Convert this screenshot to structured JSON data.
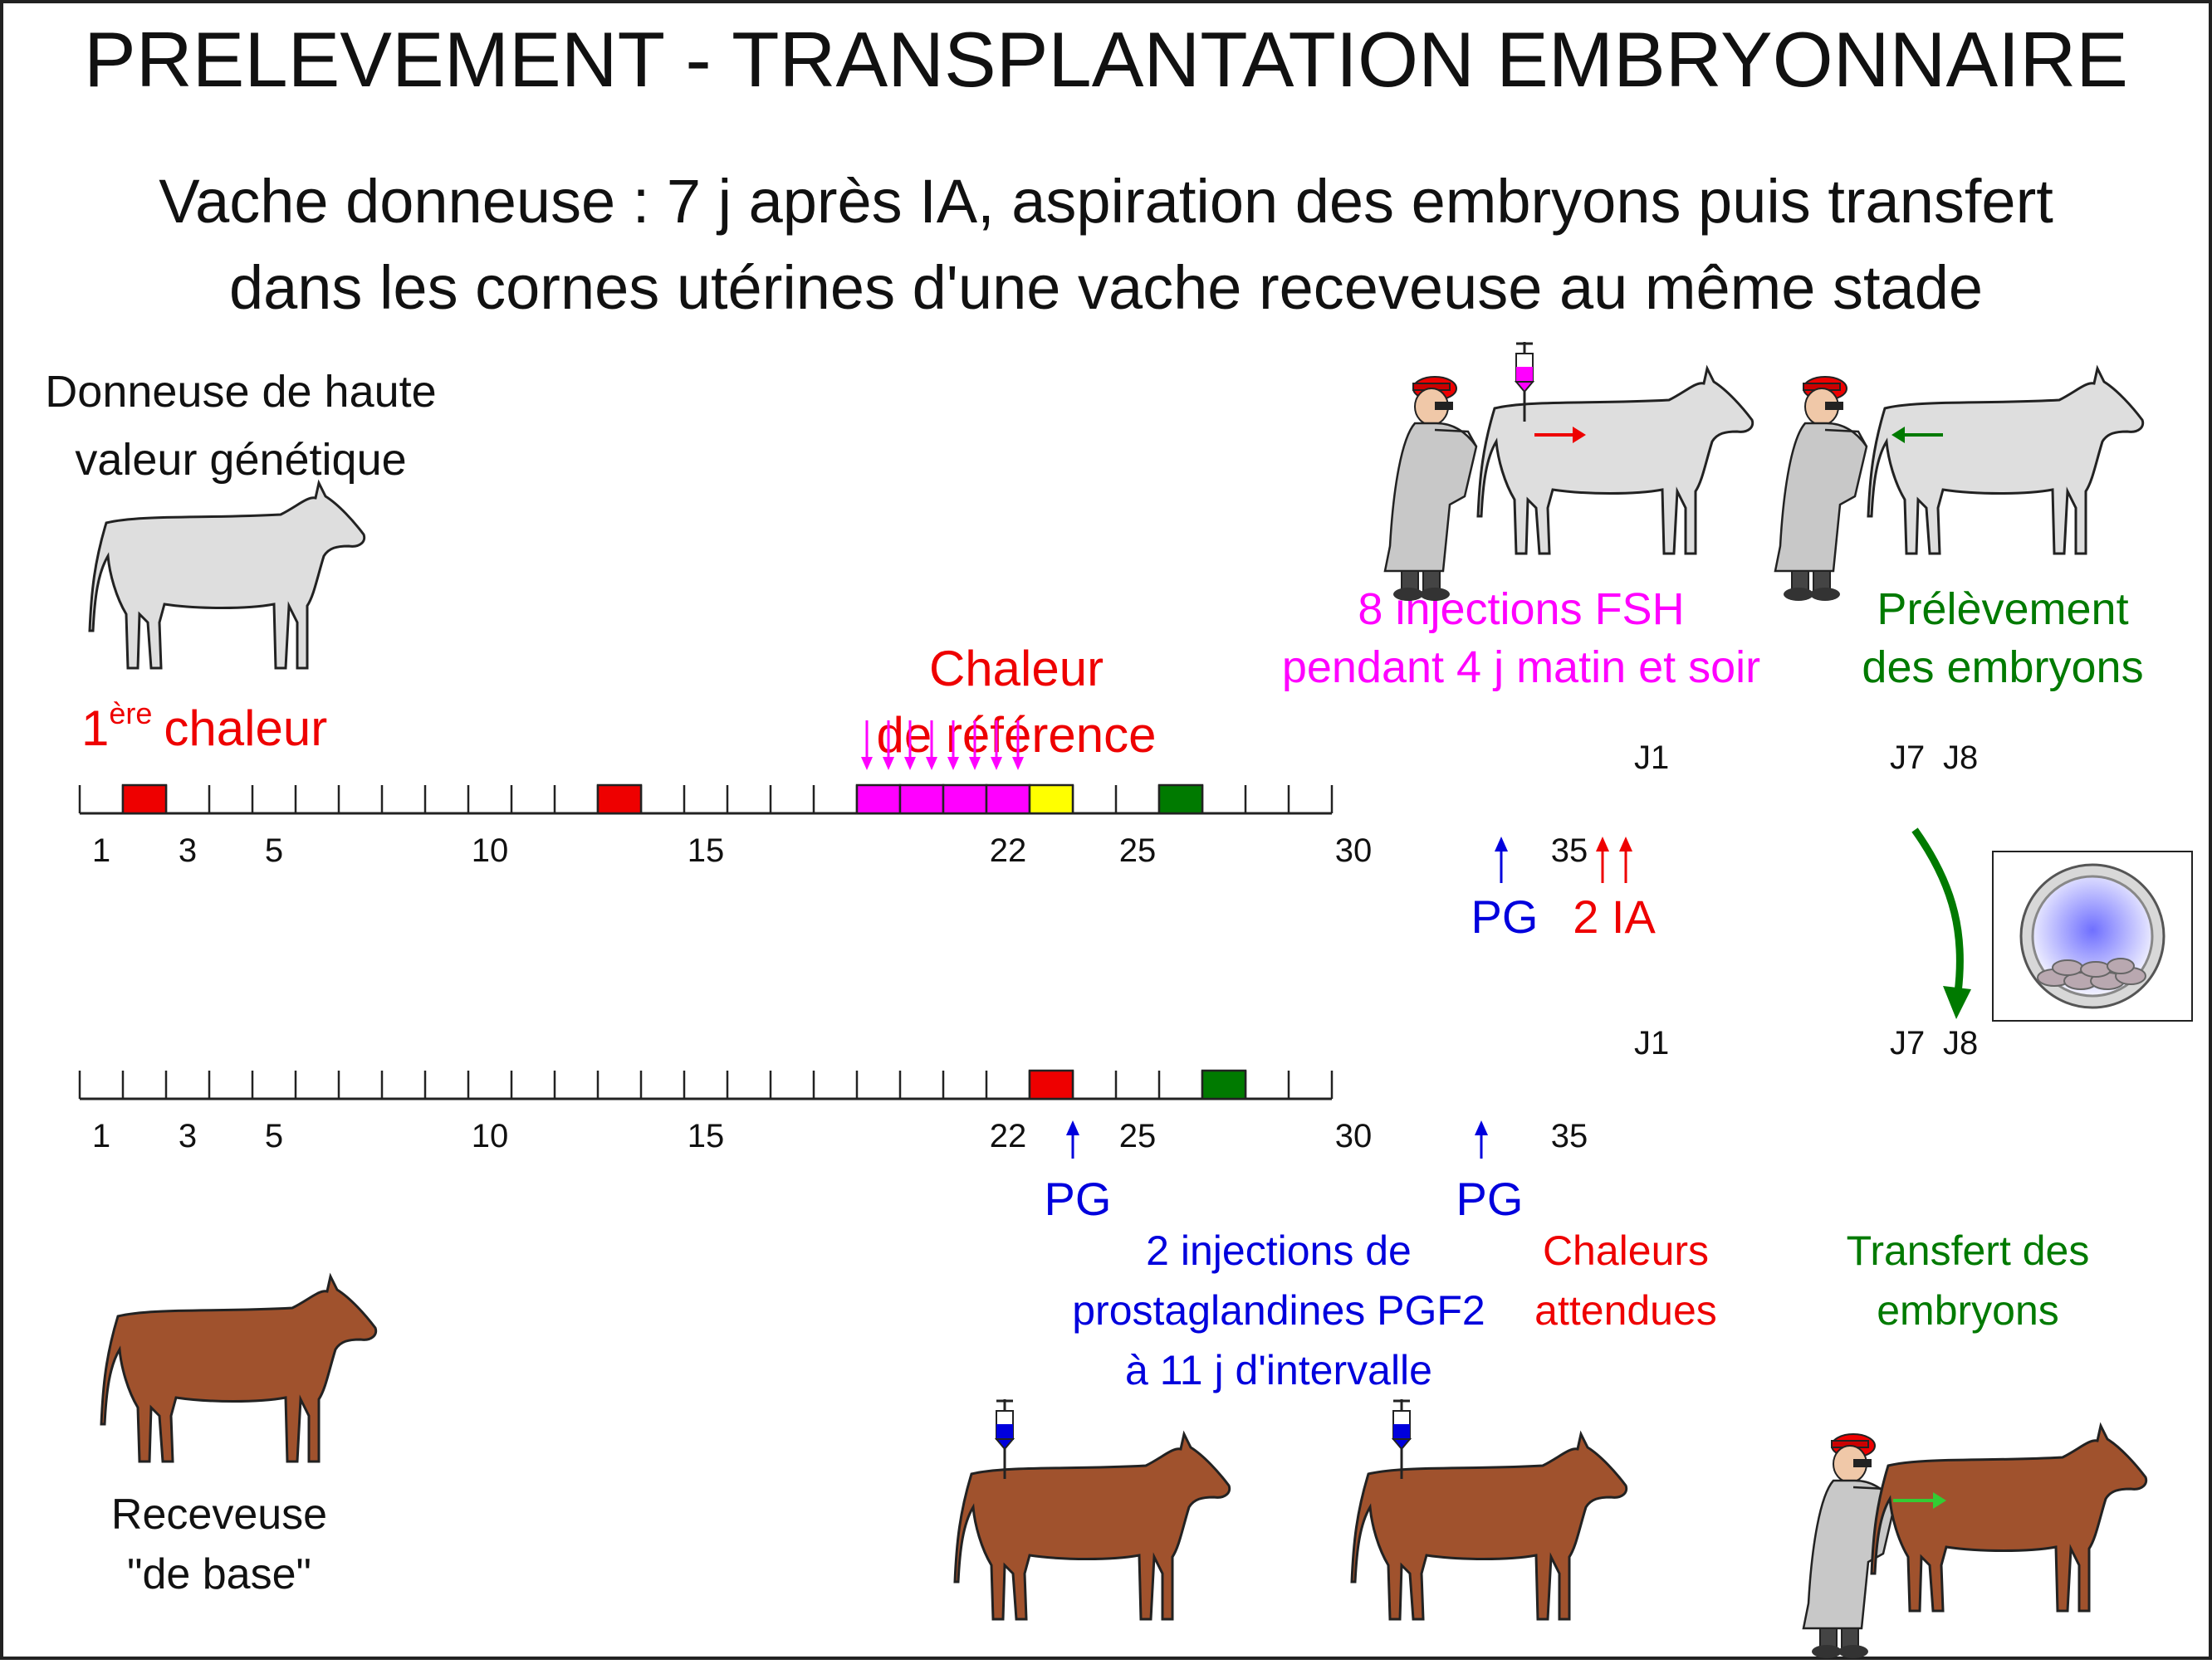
{
  "title": "PRELEVEMENT - TRANSPLANTATION EMBRYONNAIRE",
  "subtitle_line1": "Vache donneuse : 7 j après IA, aspiration des embryons puis transfert",
  "subtitle_line2": "dans les cornes utérines d'une vache receveuse au même stade",
  "donor": {
    "label_line1": "Donneuse de haute",
    "label_line2": "valeur génétique",
    "first_heat_num": "1",
    "first_heat_sup": "ère",
    "first_heat_word": "chaleur",
    "ref_heat_line1": "Chaleur",
    "ref_heat_line2": "de référence",
    "fsh_line1": "8 injections FSH",
    "fsh_line2": "pendant 4 j matin et soir",
    "collect_line1": "Prélèvement",
    "collect_line2": "des embryons",
    "pg": "PG",
    "ia": "2 IA",
    "j1": "J1",
    "j7": "J7",
    "j8": "J8",
    "ticks": [
      "1",
      "3",
      "5",
      "10",
      "15",
      "22",
      "25",
      "30",
      "35"
    ]
  },
  "recipient": {
    "label_line1": "Receveuse",
    "label_line2": "\"de base\"",
    "pg1": "PG",
    "pg2": "PG",
    "inj_line1": "2 injections de",
    "inj_line2": "prostaglandines PGF2",
    "inj_line3": "à 11 j d'intervalle",
    "heat_line1": "Chaleurs",
    "heat_line2": "attendues",
    "transfer_line1": "Transfert des",
    "transfer_line2": "embryons",
    "j1": "J1",
    "j7": "J7",
    "j8": "J8",
    "ticks": [
      "1",
      "3",
      "5",
      "10",
      "15",
      "22",
      "25",
      "30",
      "35"
    ]
  },
  "colors": {
    "red": "#ee0000",
    "magenta": "#ff00ff",
    "yellow": "#ffff00",
    "green": "#007a00",
    "blue": "#0000dd",
    "donor_cow": "#dedede",
    "recipient_cow": "#a0522d"
  }
}
